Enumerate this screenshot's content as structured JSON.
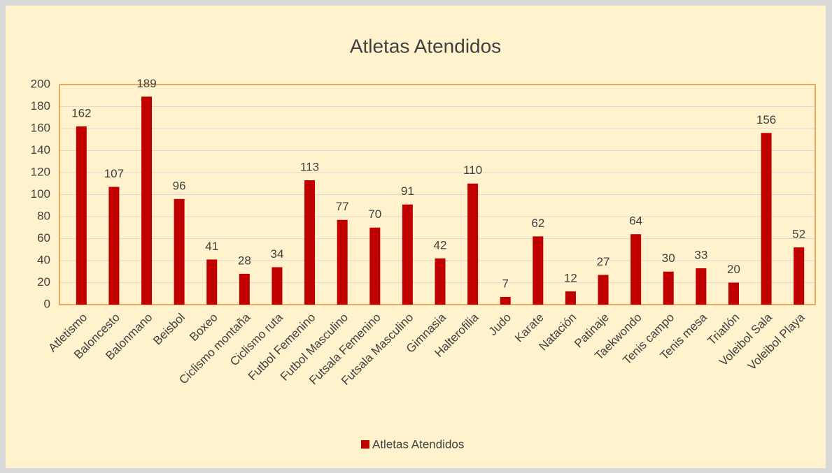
{
  "chart_data": {
    "type": "bar",
    "title": "Atletas Atendidos",
    "categories": [
      "Atletismo",
      "Baloncesto",
      "Balonmano",
      "Beisbol",
      "Boxeo",
      "Ciclismo montaña",
      "Ciclismo ruta",
      "Futbol Femenino",
      "Futbol Masculino",
      "Futsala Femenino",
      "Futsala Masculino",
      "Gimnasia",
      "Halterofilia",
      "Judo",
      "Karate",
      "Natación",
      "Patinaje",
      "Taekwondo",
      "Tenis campo",
      "Tenis mesa",
      "Triatlón",
      "Voleibol Sala",
      "Voleibol Playa"
    ],
    "series": [
      {
        "name": "Atletas Atendidos",
        "color": "#c00000",
        "values": [
          162,
          107,
          189,
          96,
          41,
          28,
          34,
          113,
          77,
          70,
          91,
          42,
          110,
          7,
          62,
          12,
          27,
          64,
          30,
          33,
          20,
          156,
          52
        ]
      }
    ],
    "ylim": [
      0,
      200
    ],
    "yticks": [
      0,
      20,
      40,
      60,
      80,
      100,
      120,
      140,
      160,
      180,
      200
    ],
    "grid": true,
    "legend": "bottom"
  }
}
